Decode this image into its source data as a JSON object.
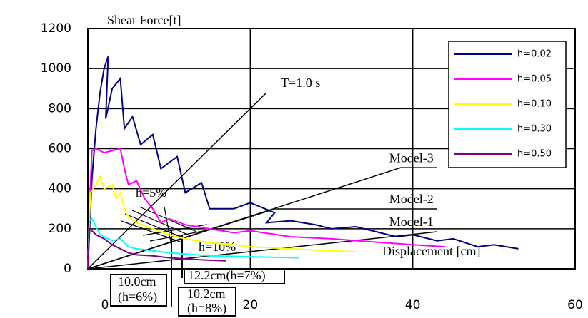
{
  "chart_data": {
    "type": "line",
    "title": "Shear Force[t]",
    "x_label": "Displacement [cm]",
    "xlim": [
      0,
      60
    ],
    "xticks": [
      0,
      20,
      40,
      60
    ],
    "ylim": [
      0,
      1200
    ],
    "yticks": [
      0,
      200,
      400,
      600,
      800,
      1000,
      1200
    ],
    "grid": true,
    "legend": "upper right",
    "series": [
      {
        "name": "h=0.02",
        "color": "#000080",
        "x": [
          0,
          0.5,
          1,
          1.5,
          2,
          2.5,
          2.2,
          3,
          4,
          4.5,
          5.5,
          6.5,
          8,
          9,
          11,
          12,
          14,
          15,
          18,
          20,
          23,
          22,
          25,
          28,
          30,
          33,
          35,
          38,
          40,
          43,
          45,
          48,
          50,
          53
        ],
        "values": [
          0,
          450,
          700,
          880,
          1000,
          1060,
          750,
          900,
          950,
          700,
          760,
          620,
          670,
          500,
          560,
          380,
          430,
          300,
          300,
          330,
          280,
          230,
          240,
          220,
          200,
          210,
          190,
          160,
          170,
          140,
          150,
          110,
          120,
          100
        ]
      },
      {
        "name": "h=0.05",
        "color": "#ff00ff",
        "x": [
          0,
          0.3,
          0.5,
          1,
          2,
          4,
          4.5,
          5,
          6,
          7,
          8,
          9,
          10,
          12,
          15,
          18,
          20,
          25,
          30,
          35,
          40,
          44
        ],
        "values": [
          0,
          400,
          590,
          600,
          580,
          600,
          500,
          420,
          440,
          350,
          300,
          230,
          250,
          220,
          200,
          180,
          190,
          160,
          150,
          135,
          120,
          110
        ]
      },
      {
        "name": "h=0.10",
        "color": "#ffff00",
        "x": [
          0,
          0.3,
          1,
          1.5,
          2,
          3,
          3.5,
          4,
          4.5,
          5,
          6,
          8,
          10,
          12,
          15,
          18,
          20,
          25,
          30,
          33
        ],
        "values": [
          0,
          380,
          420,
          460,
          400,
          420,
          350,
          380,
          300,
          260,
          230,
          200,
          170,
          150,
          130,
          120,
          110,
          100,
          90,
          85
        ]
      },
      {
        "name": "h=0.30",
        "color": "#00ffff",
        "x": [
          0,
          0.2,
          0.5,
          1,
          1.5,
          2,
          3,
          4,
          5,
          6,
          8,
          10,
          15,
          20,
          26
        ],
        "values": [
          0,
          240,
          250,
          210,
          170,
          160,
          140,
          150,
          110,
          100,
          90,
          80,
          65,
          60,
          55
        ]
      },
      {
        "name": "h=0.50",
        "color": "#800080",
        "x": [
          0,
          0.2,
          0.5,
          1,
          2,
          3,
          4,
          5,
          6,
          8,
          10,
          14,
          17
        ],
        "values": [
          0,
          200,
          190,
          170,
          150,
          120,
          100,
          80,
          70,
          65,
          55,
          45,
          40
        ]
      }
    ],
    "reference_lines": [
      {
        "name": "T=1.0 s",
        "x": [
          0,
          22
        ],
        "values": [
          0,
          880
        ]
      },
      {
        "name": "Model-3",
        "x": [
          0,
          38.5,
          43
        ],
        "values": [
          0,
          505,
          505
        ]
      },
      {
        "name": "Model-2",
        "x": [
          0,
          23,
          43
        ],
        "values": [
          0,
          299,
          299
        ]
      },
      {
        "name": "Model-1",
        "x": [
          0,
          43
        ],
        "values": [
          0,
          185
        ]
      }
    ],
    "annotations": [
      "h=5%",
      "h=10%",
      "10.0cm",
      "(h=6%)",
      "12.2cm(h=7%)",
      "10.2cm",
      "(h=8%)"
    ]
  }
}
